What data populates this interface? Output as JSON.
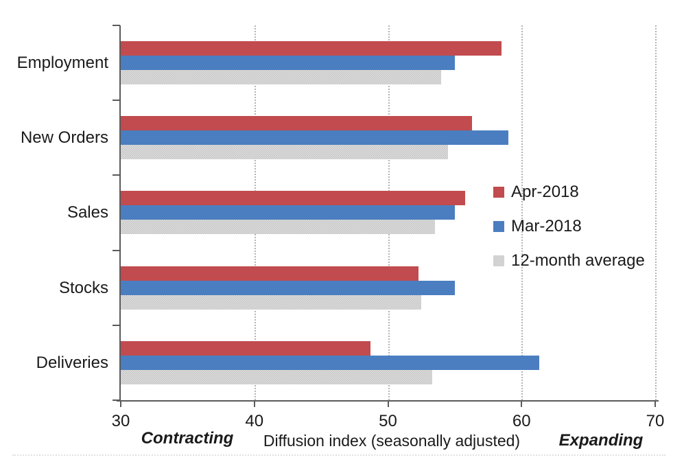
{
  "chart_data": {
    "type": "bar",
    "orientation": "horizontal",
    "title": "",
    "xlabel": "Diffusion index (seasonally adjusted)",
    "ylabel": "",
    "xlim": [
      30,
      70
    ],
    "x_ticks": [
      30,
      40,
      50,
      60,
      70
    ],
    "grid": "vertical dotted gridlines at 40/50/60/70",
    "legend_position": "middle-right",
    "annotations": {
      "left": "Contracting",
      "right": "Expanding"
    },
    "categories": [
      "Employment",
      "New Orders",
      "Sales",
      "Stocks",
      "Deliveries"
    ],
    "series": [
      {
        "name": "Apr-2018",
        "color": "#c14b4e",
        "values": [
          58.5,
          56.3,
          55.8,
          52.3,
          48.7
        ]
      },
      {
        "name": "Mar-2018",
        "color": "#4b7ec0",
        "values": [
          55.0,
          59.0,
          55.0,
          55.0,
          61.3
        ]
      },
      {
        "name": "12-month average",
        "color": "#cbcbcb",
        "values": [
          54.0,
          54.5,
          53.5,
          52.5,
          53.3
        ]
      }
    ]
  },
  "colors": {
    "axis": "#5a5a5a",
    "gridline": "#b3b3b3",
    "text": "#1a1a1a"
  }
}
